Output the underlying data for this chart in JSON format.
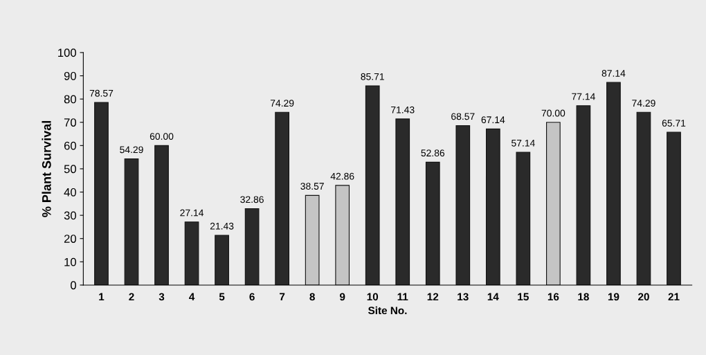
{
  "chart_data": {
    "type": "bar",
    "xlabel": "Site No.",
    "ylabel": "% Plant Survival",
    "categories": [
      "1",
      "2",
      "3",
      "4",
      "5",
      "6",
      "7",
      "8",
      "9",
      "10",
      "11",
      "12",
      "13",
      "14",
      "15",
      "16",
      "18",
      "19",
      "20",
      "21"
    ],
    "values": [
      78.57,
      54.29,
      60.0,
      27.14,
      21.43,
      32.86,
      74.29,
      38.57,
      42.86,
      85.71,
      71.43,
      52.86,
      68.57,
      67.14,
      57.14,
      70.0,
      77.14,
      87.14,
      74.29,
      65.71
    ],
    "colors": [
      "#2a2a2a",
      "#2a2a2a",
      "#2a2a2a",
      "#2a2a2a",
      "#2a2a2a",
      "#2a2a2a",
      "#2a2a2a",
      "#c4c4c4",
      "#c4c4c4",
      "#2a2a2a",
      "#2a2a2a",
      "#2a2a2a",
      "#2a2a2a",
      "#2a2a2a",
      "#2a2a2a",
      "#c4c4c4",
      "#2a2a2a",
      "#2a2a2a",
      "#2a2a2a",
      "#2a2a2a"
    ],
    "value_labels": [
      "78.57",
      "54.29",
      "60.00",
      "27.14",
      "21.43",
      "32.86",
      "74.29",
      "38.57",
      "42.86",
      "85.71",
      "71.43",
      "52.86",
      "68.57",
      "67.14",
      "57.14",
      "70.00",
      "77.14",
      "87.14",
      "74.29",
      "65.71"
    ],
    "ylim": [
      0,
      100
    ],
    "yticks": [
      0,
      10,
      20,
      30,
      40,
      50,
      60,
      70,
      80,
      90,
      100
    ],
    "grid": false,
    "legend": false
  }
}
